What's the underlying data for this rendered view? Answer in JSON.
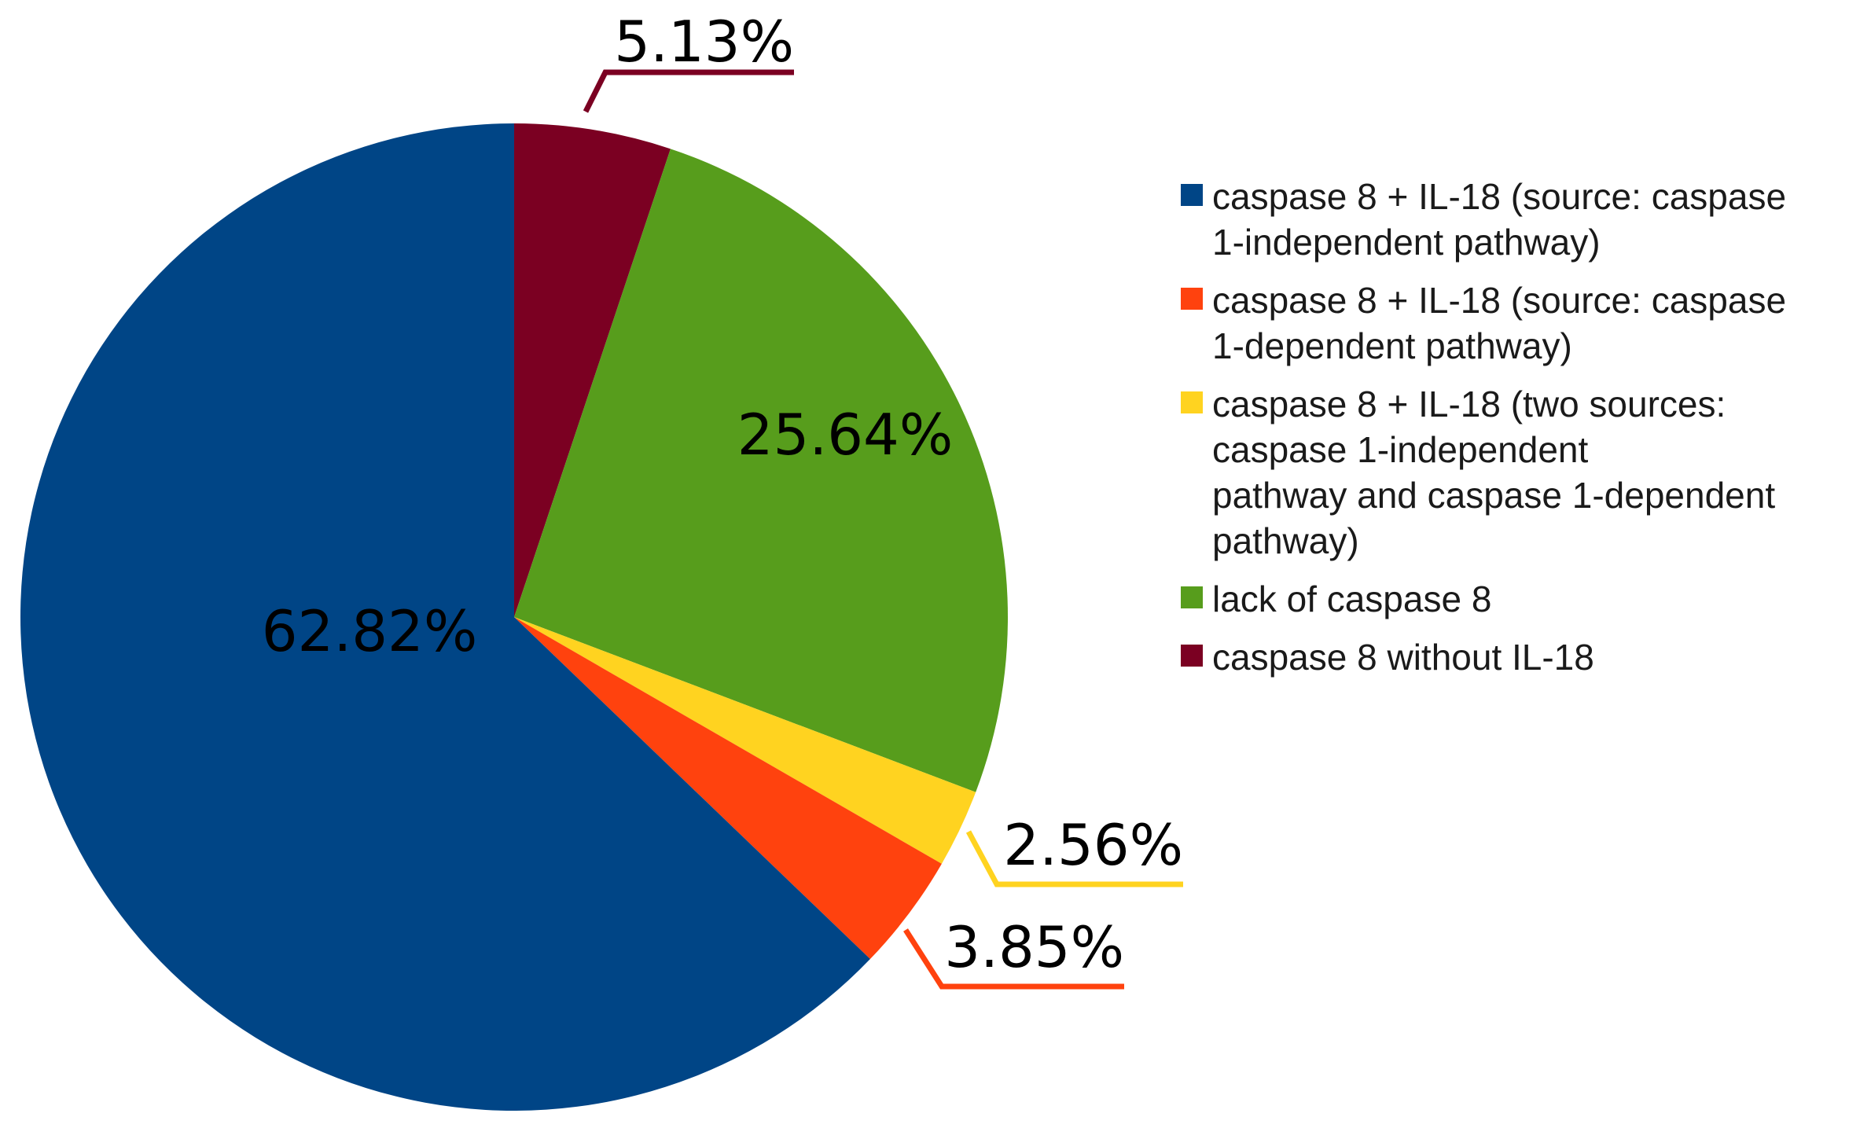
{
  "chart_data": {
    "type": "pie",
    "title": "",
    "start_angle_deg": 0,
    "direction": "clockwise",
    "label_format": "{value}%",
    "legend_position": "right",
    "slices": [
      {
        "label": "caspase 8 without IL-18",
        "legend_lines": [
          "caspase 8 without IL-18"
        ],
        "value": 5.13,
        "color": "#7b0022",
        "label_placement": "outside"
      },
      {
        "label": "lack of caspase 8",
        "legend_lines": [
          "lack of caspase 8"
        ],
        "value": 25.64,
        "color": "#579d1c",
        "label_placement": "inside"
      },
      {
        "label": "caspase 8 + IL-18 (two sources: caspase 1-independent pathway and caspase 1-dependent pathway)",
        "legend_lines": [
          "caspase 8 + IL-18 (two sources:",
          "caspase 1-independent",
          "pathway and caspase 1-dependent",
          "pathway)"
        ],
        "value": 2.56,
        "color": "#ffd320",
        "label_placement": "outside"
      },
      {
        "label": "caspase 8 + IL-18 (source: caspase 1-dependent pathway)",
        "legend_lines": [
          "caspase 8 + IL-18 (source: caspase",
          "1-dependent pathway)"
        ],
        "value": 3.85,
        "color": "#ff420e",
        "label_placement": "outside"
      },
      {
        "label": "caspase 8 + IL-18 (source: caspase 1-independent pathway)",
        "legend_lines": [
          "caspase 8 + IL-18 (source: caspase",
          "1-independent pathway)"
        ],
        "value": 62.82,
        "color": "#004586",
        "label_placement": "inside"
      }
    ],
    "legend_order": [
      "caspase 8 + IL-18 (source: caspase 1-independent pathway)",
      "caspase 8 + IL-18 (source: caspase 1-dependent pathway)",
      "caspase 8 + IL-18 (two sources: caspase 1-independent pathway and caspase 1-dependent pathway)",
      "lack of caspase 8",
      "caspase 8 without IL-18"
    ]
  }
}
